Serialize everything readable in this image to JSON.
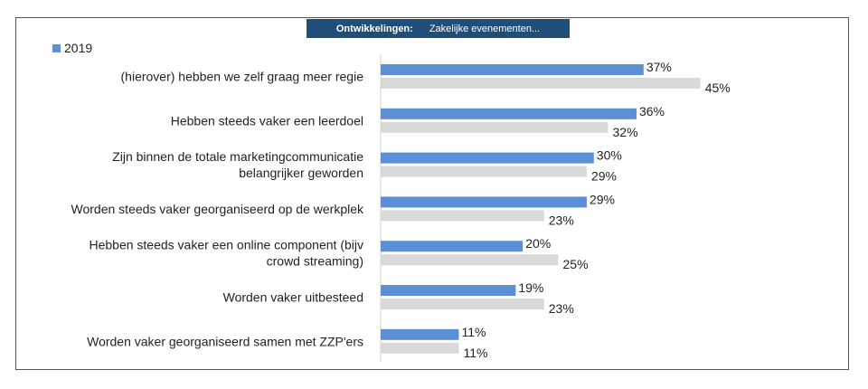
{
  "header": {
    "label": "Ontwikkelingen:",
    "value": "Zakelijke evenementen..."
  },
  "chart_data": {
    "type": "bar",
    "orientation": "horizontal",
    "categories": [
      [
        "(hierover) hebben we zelf graag meer regie"
      ],
      [
        "Hebben steeds vaker een leerdoel"
      ],
      [
        "Zijn binnen de totale marketingcommunicatie",
        "belangrijker  geworden"
      ],
      [
        "Worden steeds vaker georganiseerd op de werkplek"
      ],
      [
        "Hebben steeds vaker een online component (bijv",
        "crowd streaming)"
      ],
      [
        "Worden vaker uitbesteed"
      ],
      [
        "Worden vaker georganiseerd samen met ZZP'ers"
      ]
    ],
    "series": [
      {
        "name": "2019",
        "color": "#5b8fd6",
        "values": [
          37,
          36,
          30,
          29,
          20,
          19,
          11
        ],
        "labels": [
          "37%",
          "36%",
          "30%",
          "29%",
          "20%",
          "19%",
          "11%"
        ]
      },
      {
        "color": "#d9d9d9",
        "values": [
          45,
          32,
          29,
          23,
          25,
          23,
          11
        ],
        "labels": [
          "45%",
          "32%",
          "29%",
          "23%",
          "25%",
          "23%",
          "11%"
        ]
      }
    ],
    "legend": "top-left",
    "grid": false
  }
}
